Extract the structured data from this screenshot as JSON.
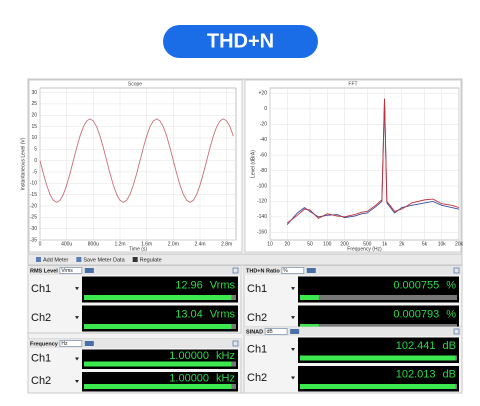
{
  "header": {
    "title": "THD+N"
  },
  "chart_data": [
    {
      "type": "line",
      "title": "Scope",
      "x_label": "Time (s)",
      "y_label": "Instantaneous Level (V)",
      "x": [
        0,
        5e-05,
        0.0001,
        0.00015,
        0.0002,
        0.00025,
        0.0003,
        0.00035,
        0.0004,
        0.00045,
        0.0005,
        0.00055,
        0.0006,
        0.00065,
        0.0007,
        0.00075,
        0.0008,
        0.00085,
        0.0009,
        0.00095,
        0.001,
        0.00105,
        0.0011,
        0.00115,
        0.0012,
        0.00125,
        0.0013,
        0.00135,
        0.0014,
        0.00145,
        0.0015,
        0.00155,
        0.0016,
        0.00165,
        0.0017,
        0.00175,
        0.0018,
        0.00185,
        0.0019,
        0.00195,
        0.002,
        0.00205,
        0.0021,
        0.00215,
        0.0022,
        0.00225,
        0.0023,
        0.00235,
        0.0024,
        0.00245,
        0.0025,
        0.00255,
        0.0026,
        0.00265,
        0.0027,
        0.00275,
        0.0028,
        0.00285,
        0.0029
      ],
      "series": [
        {
          "color": "#c8707a",
          "values": [
            0,
            -5.69,
            -10.82,
            -14.89,
            -17.5,
            -18.4,
            -17.5,
            -14.89,
            -10.82,
            -5.69,
            0,
            5.69,
            10.82,
            14.89,
            17.5,
            18.4,
            17.5,
            14.89,
            10.82,
            5.69,
            0,
            -5.69,
            -10.82,
            -14.89,
            -17.5,
            -18.4,
            -17.5,
            -14.89,
            -10.82,
            -5.69,
            0,
            5.69,
            10.82,
            14.89,
            17.5,
            18.4,
            17.5,
            14.89,
            10.82,
            5.69,
            0,
            -5.69,
            -10.82,
            -14.89,
            -17.5,
            -18.4,
            -17.5,
            -14.89,
            -10.82,
            -5.69,
            0,
            5.69,
            10.82,
            14.89,
            17.5,
            18.4,
            17.5,
            14.89,
            10.82
          ]
        }
      ],
      "xlim": [
        0,
        0.00294
      ],
      "ylim": [
        -35,
        32
      ],
      "xticks": [
        0,
        {
          "value": 0.0004,
          "label": "400u"
        },
        {
          "value": 0.0008,
          "label": "800u"
        },
        {
          "value": 0.0012,
          "label": "1.2m"
        },
        {
          "value": 0.0016,
          "label": "1.6m"
        },
        {
          "value": 0.002,
          "label": "2.0m"
        },
        {
          "value": 0.0024,
          "label": "2.4m"
        },
        {
          "value": 0.0028,
          "label": "2.8m"
        }
      ],
      "yticks": [
        30,
        25,
        20,
        15,
        10,
        5,
        0,
        -5,
        -10,
        -15,
        -20,
        -25,
        -30,
        -35
      ],
      "grid": true
    },
    {
      "type": "line",
      "title": "FFT",
      "x_label": "Frequency (Hz)",
      "y_label": "Level (dBrA)",
      "xscale": "log",
      "x": [
        20,
        30,
        40,
        50,
        70,
        100,
        150,
        200,
        300,
        400,
        500,
        700,
        900,
        1000,
        1100,
        1500,
        2000,
        3000,
        5000,
        7000,
        10000,
        15000,
        20000
      ],
      "series": [
        {
          "color": "#3a4fa0",
          "values": [
            -150,
            -135,
            -128,
            -133,
            -140,
            -138,
            -137,
            -141,
            -139,
            -136,
            -135,
            -127,
            -120,
            13,
            -122,
            -135,
            -128,
            -125,
            -122,
            -120,
            -125,
            -128,
            -130
          ]
        },
        {
          "color": "#c0303a",
          "values": [
            -148,
            -138,
            -130,
            -131,
            -142,
            -136,
            -139,
            -140,
            -137,
            -134,
            -133,
            -125,
            -118,
            13,
            -120,
            -133,
            -130,
            -122,
            -118,
            -117,
            -123,
            -125,
            -128
          ]
        }
      ],
      "xlim": [
        10,
        20000
      ],
      "ylim": [
        -170,
        27
      ],
      "xticks": [
        10,
        20,
        50,
        100,
        200,
        500,
        {
          "value": 1000,
          "label": "1k"
        },
        {
          "value": 2000,
          "label": "2k"
        },
        {
          "value": 5000,
          "label": "5k"
        },
        {
          "value": 10000,
          "label": "10k"
        },
        {
          "value": 20000,
          "label": "20k"
        }
      ],
      "yticks": [
        {
          "value": 20,
          "label": "+20"
        },
        0,
        -20,
        -40,
        -60,
        -80,
        -100,
        -120,
        -140,
        -160
      ],
      "grid": true
    }
  ],
  "toolbar": [
    "Add Meter",
    "Save Meter Data",
    "Regulate"
  ],
  "meters": [
    {
      "title": "RMS Level",
      "unit": "Vrms",
      "rows": [
        {
          "label": "Ch1",
          "value": "12.96",
          "unit": "Vrms"
        },
        {
          "label": "Ch2",
          "value": "13.04",
          "unit": "Vrms"
        }
      ]
    },
    {
      "title": "THD+N Ratio",
      "unit": "%",
      "rows": [
        {
          "label": "Ch1",
          "value": "0.000755",
          "unit": "%"
        },
        {
          "label": "Ch2",
          "value": "0.000793",
          "unit": "%"
        }
      ]
    },
    {
      "title": "Frequency",
      "unit": "Hz",
      "rows": [
        {
          "label": "Ch1",
          "value": "1.00000",
          "unit": "kHz"
        },
        {
          "label": "Ch2",
          "value": "1.00000",
          "unit": "kHz"
        }
      ]
    },
    {
      "title": "SINAD",
      "unit": "dB",
      "rows": [
        {
          "label": "Ch1",
          "value": "102.441",
          "unit": "dB"
        },
        {
          "label": "Ch2",
          "value": "102.013",
          "unit": "dB"
        }
      ]
    }
  ]
}
